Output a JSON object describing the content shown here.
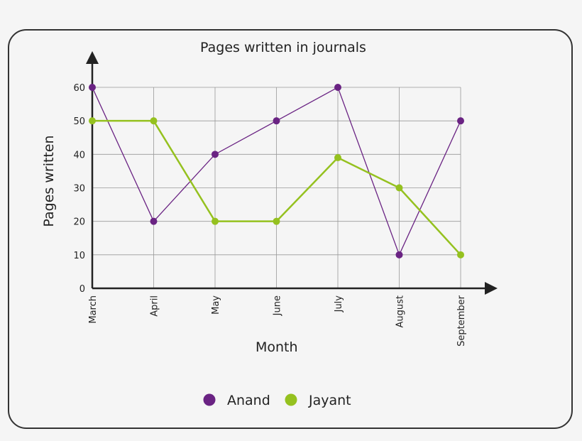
{
  "chart_data": {
    "type": "line",
    "title": "Pages written in journals",
    "xlabel": "Month",
    "ylabel": "Pages written",
    "categories": [
      "March",
      "April",
      "May",
      "June",
      "July",
      "August",
      "September"
    ],
    "ylim": [
      0,
      60
    ],
    "yticks": [
      0,
      10,
      20,
      30,
      40,
      50,
      60
    ],
    "grid": true,
    "legend_position": "bottom",
    "series": [
      {
        "name": "Anand",
        "color": "#6a2383",
        "values": [
          60,
          20,
          40,
          50,
          60,
          10,
          50
        ]
      },
      {
        "name": "Jayant",
        "color": "#95c11f",
        "values": [
          50,
          50,
          20,
          20,
          39,
          30,
          10
        ]
      }
    ]
  }
}
